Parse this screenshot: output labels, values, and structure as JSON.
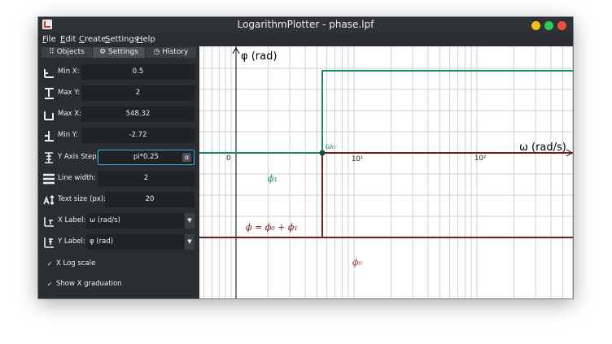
{
  "window": {
    "title": "LogarithmPlotter - phase.lpf"
  },
  "menu": [
    {
      "acc": "F",
      "rest": "ile"
    },
    {
      "acc": "E",
      "rest": "dit"
    },
    {
      "acc": "C",
      "rest": "reate"
    },
    {
      "acc": "S",
      "rest": "ettings"
    },
    {
      "acc": "H",
      "rest": "elp"
    }
  ],
  "tabs": [
    {
      "label": "Objects",
      "icon": "grid-icon"
    },
    {
      "label": "Settings",
      "icon": "gear-icon"
    },
    {
      "label": "History",
      "icon": "clock-icon"
    }
  ],
  "settings": {
    "min_x": {
      "label": "Min X:",
      "value": "0.5"
    },
    "max_y": {
      "label": "Max Y:",
      "value": "2"
    },
    "max_x": {
      "label": "Max X:",
      "value": "548.32"
    },
    "min_y": {
      "label": "Min Y:",
      "value": "-2.72"
    },
    "y_axis_step": {
      "label": "Y Axis Step:",
      "value": "pi*0.25",
      "button": "α"
    },
    "line_width": {
      "label": "Line width:",
      "value": "2"
    },
    "text_size": {
      "label": "Text size (px):",
      "value": "20"
    },
    "x_label": {
      "label": "X Label:",
      "value": "ω (rad/s)"
    },
    "y_label": {
      "label": "Y Label:",
      "value": "φ (rad)"
    },
    "x_log_scale": {
      "label": "X Log scale",
      "checked": true,
      "mark": "✓"
    },
    "show_x_graduation": {
      "label": "Show X graduation",
      "checked": true,
      "mark": "✓"
    }
  },
  "graph": {
    "y_axis_label": "φ (rad)",
    "x_axis_label": "ω (rad/s)",
    "origin_label": "0",
    "tick_10_1": "10¹",
    "tick_10_2": "10²",
    "omega0_label": "ω₀",
    "phi1_label": "ϕ₁",
    "phi0_label": "ϕ₀",
    "sum_label": "ϕ = ϕ₀ + ϕ₁",
    "colors": {
      "phi1": "#1a8a6a",
      "phi0": "#7a1a1a",
      "sum": "#7a1a1a",
      "axis": "#000000",
      "grid": "#cccccc"
    }
  }
}
